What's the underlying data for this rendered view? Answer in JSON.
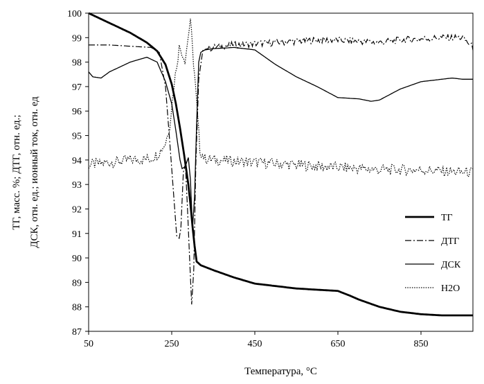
{
  "chart_data": {
    "type": "line",
    "xlabel": "Температура, °C",
    "ylabel_lines": [
      "ТГ, масс. %; ДТГ, отн. ед.;",
      "ДСК, отн. ед.; ионный ток, отн. ед"
    ],
    "xlim": [
      50,
      975
    ],
    "ylim": [
      87,
      100
    ],
    "x_ticks": [
      "50",
      "250",
      "450",
      "650",
      "850"
    ],
    "y_ticks": [
      "87",
      "88",
      "89",
      "90",
      "91",
      "92",
      "93",
      "94",
      "95",
      "96",
      "97",
      "98",
      "99",
      "100"
    ],
    "grid": false,
    "legend_position": "bottom-right",
    "series": [
      {
        "name": "ТГ",
        "style": "solid-thick",
        "color": "#000000",
        "x": [
          50,
          100,
          150,
          190,
          215,
          235,
          250,
          260,
          270,
          280,
          290,
          295,
          300,
          305,
          310,
          320,
          350,
          400,
          450,
          500,
          550,
          600,
          650,
          680,
          700,
          750,
          800,
          850,
          900,
          975
        ],
        "y": [
          100,
          99.6,
          99.2,
          98.8,
          98.45,
          97.9,
          97.1,
          96.3,
          95.3,
          94.2,
          93.0,
          92.2,
          91.3,
          90.5,
          89.85,
          89.7,
          89.5,
          89.2,
          88.95,
          88.85,
          88.75,
          88.7,
          88.65,
          88.45,
          88.3,
          88.0,
          87.8,
          87.7,
          87.65,
          87.65
        ]
      },
      {
        "name": "ДТГ",
        "style": "dash-dot",
        "color": "#000000",
        "x": [
          50,
          100,
          150,
          200,
          220,
          235,
          245,
          255,
          262,
          268,
          272,
          278,
          283,
          288,
          293,
          298,
          303,
          308,
          315,
          325,
          350,
          400,
          450,
          500,
          550,
          600,
          650,
          700,
          750,
          800,
          850,
          900,
          950,
          975
        ],
        "y": [
          98.7,
          98.7,
          98.65,
          98.6,
          98.4,
          97.0,
          94.8,
          92.5,
          90.9,
          90.8,
          91.2,
          93.5,
          93.8,
          92.0,
          90.0,
          88.1,
          89.5,
          93.8,
          97.3,
          98.5,
          98.6,
          98.7,
          98.75,
          98.8,
          98.85,
          98.9,
          98.9,
          98.85,
          98.8,
          98.9,
          98.95,
          99.0,
          99.0,
          98.6
        ]
      },
      {
        "name": "ДСК",
        "style": "solid-thin",
        "color": "#000000",
        "x": [
          50,
          60,
          80,
          100,
          150,
          190,
          215,
          235,
          250,
          260,
          270,
          275,
          280,
          285,
          290,
          295,
          300,
          305,
          310,
          315,
          320,
          330,
          350,
          400,
          450,
          500,
          550,
          600,
          650,
          700,
          730,
          750,
          800,
          850,
          900,
          925,
          950,
          975
        ],
        "y": [
          97.6,
          97.4,
          97.35,
          97.6,
          98.0,
          98.2,
          98.0,
          97.2,
          96.3,
          95.2,
          94.0,
          93.65,
          93.7,
          93.85,
          94.1,
          93.2,
          91.2,
          92.5,
          95.5,
          98.0,
          98.4,
          98.5,
          98.55,
          98.6,
          98.5,
          97.9,
          97.4,
          97.0,
          96.55,
          96.5,
          96.4,
          96.45,
          96.9,
          97.2,
          97.3,
          97.35,
          97.3,
          97.3
        ]
      },
      {
        "name": "H2O",
        "style": "dotted",
        "color": "#000000",
        "x": [
          50,
          100,
          150,
          200,
          220,
          235,
          245,
          255,
          262,
          268,
          275,
          282,
          288,
          295,
          300,
          305,
          310,
          318,
          330,
          350,
          400,
          450,
          500,
          550,
          600,
          650,
          700,
          750,
          800,
          850,
          900,
          950,
          975
        ],
        "y": [
          93.8,
          93.9,
          94.0,
          94.05,
          94.3,
          94.7,
          95.4,
          97.0,
          97.9,
          98.6,
          98.4,
          98.1,
          98.8,
          99.8,
          98.5,
          97.5,
          96.3,
          94.4,
          94.05,
          94.0,
          93.95,
          93.9,
          93.85,
          93.8,
          93.75,
          93.7,
          93.65,
          93.6,
          93.6,
          93.6,
          93.55,
          93.5,
          93.5
        ]
      }
    ]
  }
}
